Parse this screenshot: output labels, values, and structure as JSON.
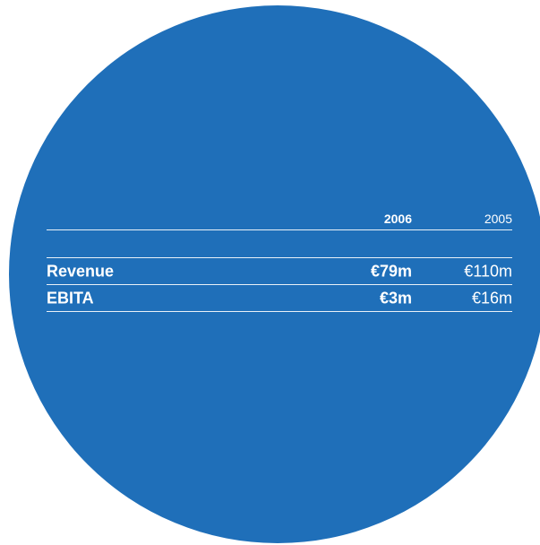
{
  "table": {
    "header": {
      "year_current": "2006",
      "year_prior": "2005"
    },
    "rows": [
      {
        "label": "Revenue",
        "current": "€79m",
        "prior": "€110m"
      },
      {
        "label": "EBITA",
        "current": "€3m",
        "prior": "€16m"
      }
    ]
  },
  "colors": {
    "circle": "#1f6fb9",
    "text": "#ffffff"
  }
}
